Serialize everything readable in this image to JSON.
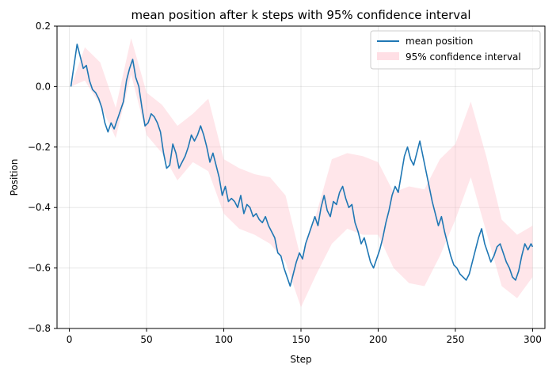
{
  "chart_data": {
    "type": "line",
    "title": "mean position after k steps with 95% confidence interval",
    "xlabel": "Step",
    "ylabel": "Position",
    "xlim": [
      -8,
      308
    ],
    "ylim": [
      -0.8,
      0.2
    ],
    "xticks": [
      0,
      50,
      100,
      150,
      200,
      250,
      300
    ],
    "yticks": [
      -0.8,
      -0.6,
      -0.4,
      -0.2,
      0.0,
      0.2
    ],
    "ytick_labels": [
      "−0.8",
      "−0.6",
      "−0.4",
      "−0.2",
      "0.0",
      "0.2"
    ],
    "grid": true,
    "legend_position": "top-right",
    "series": [
      {
        "name": "mean position",
        "kind": "line",
        "color": "#1f77b4",
        "x": [
          1,
          3,
          5,
          7,
          9,
          11,
          13,
          15,
          17,
          19,
          21,
          23,
          25,
          27,
          29,
          31,
          33,
          35,
          37,
          39,
          41,
          43,
          45,
          47,
          49,
          51,
          53,
          55,
          57,
          59,
          61,
          63,
          65,
          67,
          69,
          71,
          73,
          75,
          77,
          79,
          81,
          83,
          85,
          87,
          89,
          91,
          93,
          95,
          97,
          99,
          101,
          103,
          105,
          107,
          109,
          111,
          113,
          115,
          117,
          119,
          121,
          123,
          125,
          127,
          129,
          131,
          133,
          135,
          137,
          139,
          141,
          143,
          145,
          147,
          149,
          151,
          153,
          155,
          157,
          159,
          161,
          163,
          165,
          167,
          169,
          171,
          173,
          175,
          177,
          179,
          181,
          183,
          185,
          187,
          189,
          191,
          193,
          195,
          197,
          199,
          201,
          203,
          205,
          207,
          209,
          211,
          213,
          215,
          217,
          219,
          221,
          223,
          225,
          227,
          229,
          231,
          233,
          235,
          237,
          239,
          241,
          243,
          245,
          247,
          249,
          251,
          253,
          255,
          257,
          259,
          261,
          263,
          265,
          267,
          269,
          271,
          273,
          275,
          277,
          279,
          281,
          283,
          285,
          287,
          289,
          291,
          293,
          295,
          297,
          299,
          300
        ],
        "y": [
          0.0,
          0.07,
          0.14,
          0.1,
          0.06,
          0.07,
          0.02,
          -0.01,
          -0.02,
          -0.04,
          -0.07,
          -0.12,
          -0.15,
          -0.12,
          -0.14,
          -0.11,
          -0.08,
          -0.05,
          0.02,
          0.06,
          0.09,
          0.03,
          0.0,
          -0.07,
          -0.13,
          -0.12,
          -0.09,
          -0.1,
          -0.12,
          -0.15,
          -0.22,
          -0.27,
          -0.26,
          -0.19,
          -0.22,
          -0.27,
          -0.25,
          -0.23,
          -0.2,
          -0.16,
          -0.18,
          -0.16,
          -0.13,
          -0.16,
          -0.2,
          -0.25,
          -0.22,
          -0.26,
          -0.3,
          -0.36,
          -0.33,
          -0.38,
          -0.37,
          -0.38,
          -0.4,
          -0.36,
          -0.42,
          -0.39,
          -0.4,
          -0.43,
          -0.42,
          -0.44,
          -0.45,
          -0.43,
          -0.46,
          -0.48,
          -0.5,
          -0.55,
          -0.56,
          -0.6,
          -0.63,
          -0.66,
          -0.62,
          -0.58,
          -0.55,
          -0.57,
          -0.52,
          -0.49,
          -0.46,
          -0.43,
          -0.46,
          -0.4,
          -0.36,
          -0.41,
          -0.43,
          -0.38,
          -0.39,
          -0.35,
          -0.33,
          -0.37,
          -0.4,
          -0.39,
          -0.45,
          -0.48,
          -0.52,
          -0.5,
          -0.54,
          -0.58,
          -0.6,
          -0.57,
          -0.54,
          -0.5,
          -0.45,
          -0.41,
          -0.36,
          -0.33,
          -0.35,
          -0.29,
          -0.23,
          -0.2,
          -0.24,
          -0.26,
          -0.22,
          -0.18,
          -0.23,
          -0.28,
          -0.33,
          -0.38,
          -0.42,
          -0.46,
          -0.43,
          -0.48,
          -0.52,
          -0.56,
          -0.59,
          -0.6,
          -0.62,
          -0.63,
          -0.64,
          -0.62,
          -0.58,
          -0.54,
          -0.5,
          -0.47,
          -0.52,
          -0.55,
          -0.58,
          -0.56,
          -0.53,
          -0.52,
          -0.55,
          -0.58,
          -0.6,
          -0.63,
          -0.64,
          -0.61,
          -0.56,
          -0.52,
          -0.54,
          -0.52,
          -0.53
        ]
      },
      {
        "name": "95% confidence interval",
        "kind": "band",
        "color": "#ffc0cb",
        "opacity": 0.4,
        "x": [
          1,
          10,
          20,
          30,
          40,
          50,
          60,
          70,
          80,
          90,
          100,
          110,
          120,
          130,
          140,
          150,
          160,
          170,
          180,
          190,
          200,
          210,
          220,
          230,
          240,
          250,
          260,
          270,
          280,
          290,
          300
        ],
        "lower": [
          0.0,
          0.02,
          -0.06,
          -0.17,
          0.04,
          -0.16,
          -0.22,
          -0.31,
          -0.25,
          -0.28,
          -0.42,
          -0.47,
          -0.49,
          -0.52,
          -0.58,
          -0.73,
          -0.62,
          -0.52,
          -0.47,
          -0.49,
          -0.49,
          -0.6,
          -0.65,
          -0.66,
          -0.56,
          -0.44,
          -0.3,
          -0.48,
          -0.66,
          -0.7,
          -0.63
        ],
        "upper": [
          0.0,
          0.13,
          0.08,
          -0.07,
          0.16,
          -0.02,
          -0.06,
          -0.13,
          -0.09,
          -0.04,
          -0.24,
          -0.27,
          -0.29,
          -0.3,
          -0.36,
          -0.57,
          -0.42,
          -0.24,
          -0.22,
          -0.23,
          -0.25,
          -0.35,
          -0.33,
          -0.34,
          -0.24,
          -0.19,
          -0.05,
          -0.23,
          -0.44,
          -0.49,
          -0.46
        ]
      }
    ]
  }
}
